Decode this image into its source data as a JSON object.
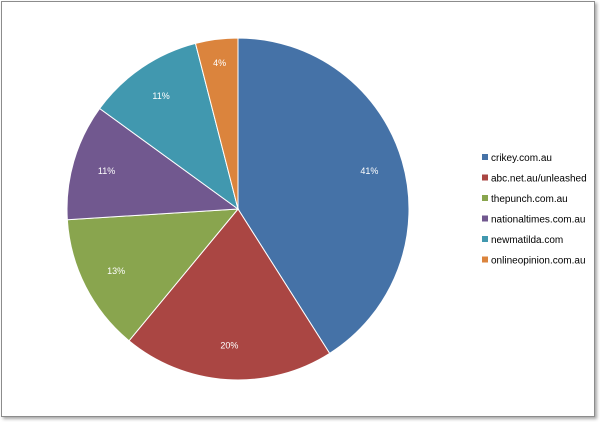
{
  "chart_data": {
    "type": "pie",
    "title": "",
    "start_angle_deg": 0,
    "direction": "clockwise",
    "legend_position": "right",
    "slices": [
      {
        "label": "crikey.com.au",
        "value": 41,
        "display": "41%",
        "color": "#4572A7"
      },
      {
        "label": "abc.net.au/unleashed",
        "value": 20,
        "display": "20%",
        "color": "#AA4643"
      },
      {
        "label": "thepunch.com.au",
        "value": 13,
        "display": "13%",
        "color": "#89A54E"
      },
      {
        "label": "nationaltimes.com.au",
        "value": 11,
        "display": "11%",
        "color": "#71588F"
      },
      {
        "label": "newmatilda.com",
        "value": 11,
        "display": "11%",
        "color": "#4198AF"
      },
      {
        "label": "onlineopinion.com.au",
        "value": 4,
        "display": "4%",
        "color": "#DB843D"
      }
    ]
  }
}
